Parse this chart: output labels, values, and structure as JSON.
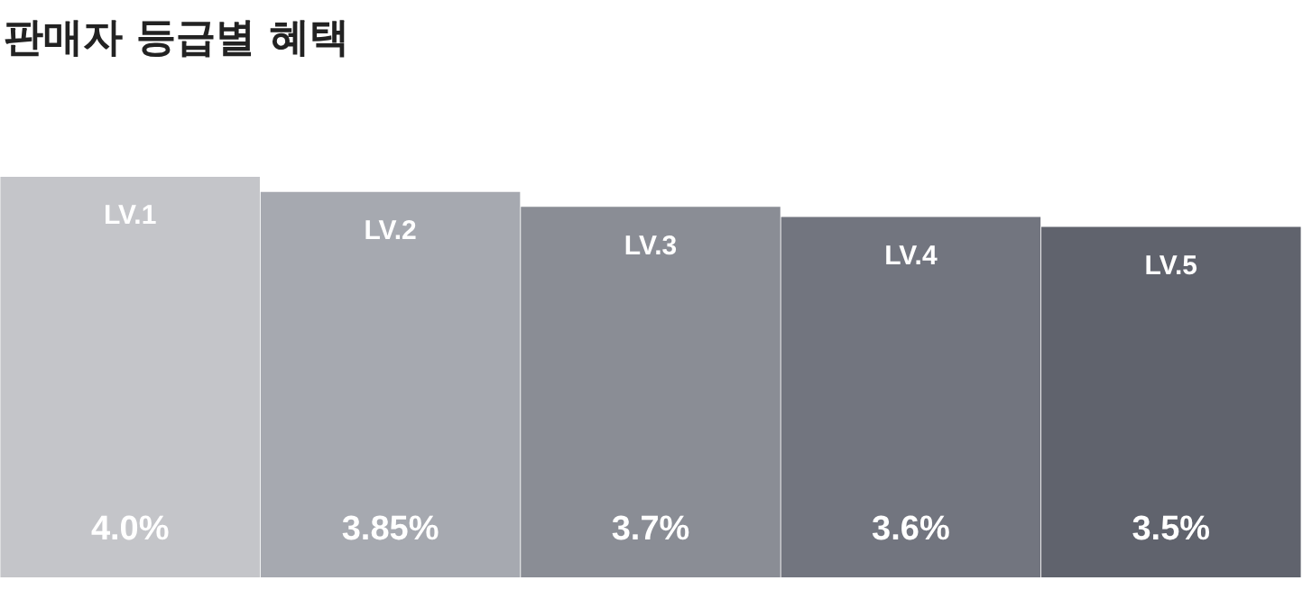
{
  "chart_data": {
    "type": "bar",
    "title": "판매자 등급별 혜택",
    "categories": [
      "LV.1",
      "LV.2",
      "LV.3",
      "LV.4",
      "LV.5"
    ],
    "values": [
      4.0,
      3.85,
      3.7,
      3.6,
      3.5
    ],
    "colors": [
      "#c4c5c9",
      "#a6a9b0",
      "#8a8d95",
      "#72757f",
      "#60636d"
    ],
    "value_labels": [
      "4.0%",
      "3.85%",
      "3.7%",
      "3.6%",
      "3.5%"
    ]
  }
}
